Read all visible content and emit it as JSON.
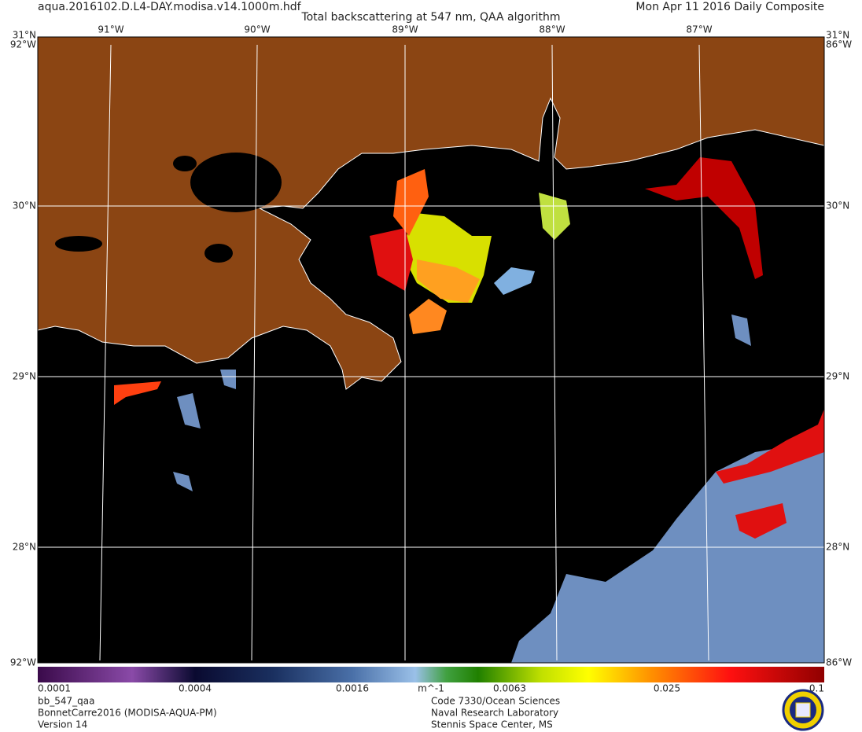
{
  "header": {
    "filename": "aqua.2016102.D.L4-DAY.modisa.v14.1000m.hdf",
    "title": "Total backscattering at 547 nm, QAA algorithm",
    "date": "Mon Apr 11 2016 Daily Composite"
  },
  "map": {
    "lon_labels": [
      "91°W",
      "90°W",
      "89°W",
      "88°W",
      "87°W"
    ],
    "lat_labels": [
      "30°N",
      "29°N",
      "28°N"
    ],
    "corner_lat": "31°N",
    "corner_lon_west": "92°W",
    "corner_lon_east": "86°W"
  },
  "colorbar": {
    "labels": [
      "0.0001",
      "0.0004",
      "0.0016",
      "0.0063",
      "0.025",
      "0.1"
    ],
    "unit": "m^-1"
  },
  "footer": {
    "left": [
      "bb_547_qaa",
      "BonnetCarre2016 (MODISA-AQUA-PM)",
      "Version 14"
    ],
    "right": [
      "Code 7330/Ocean Sciences",
      "Naval Research Laboratory",
      "Stennis Space Center, MS"
    ]
  }
}
